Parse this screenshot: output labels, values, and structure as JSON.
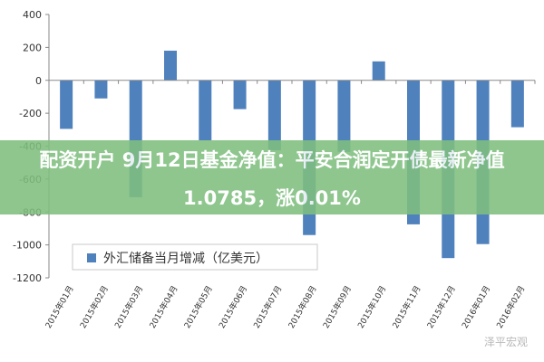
{
  "chart_data": {
    "type": "bar",
    "categories": [
      "2015年01月",
      "2015年02月",
      "2015年03月",
      "2015年04月",
      "2015年05月",
      "2015年06月",
      "2015年07月",
      "2015年08月",
      "2015年09月",
      "2015年10月",
      "2015年11月",
      "2015年12月",
      "2016年01月",
      "2016年02月"
    ],
    "series": [
      {
        "name": "外汇储备当月增减（亿美元）",
        "values": [
          -295,
          -110,
          -710,
          180,
          -365,
          -175,
          -425,
          -940,
          -435,
          115,
          -875,
          -1080,
          -995,
          -285
        ]
      }
    ],
    "ylim": [
      -1200,
      400
    ],
    "yticks": [
      400,
      200,
      0,
      -200,
      -400,
      -600,
      -800,
      -1000,
      -1200
    ],
    "xlabel": "",
    "ylabel": "",
    "title": "",
    "grid": false,
    "legend_position": "bottom-left",
    "bar_color": "#4f81bd"
  },
  "overlay": {
    "line1": "配资开户 9月12日基金净值：平安合润定开债最新净值",
    "line2": "1.0785，涨0.01%",
    "background_color": "#7fbf7f"
  },
  "watermark": "泽平宏观"
}
